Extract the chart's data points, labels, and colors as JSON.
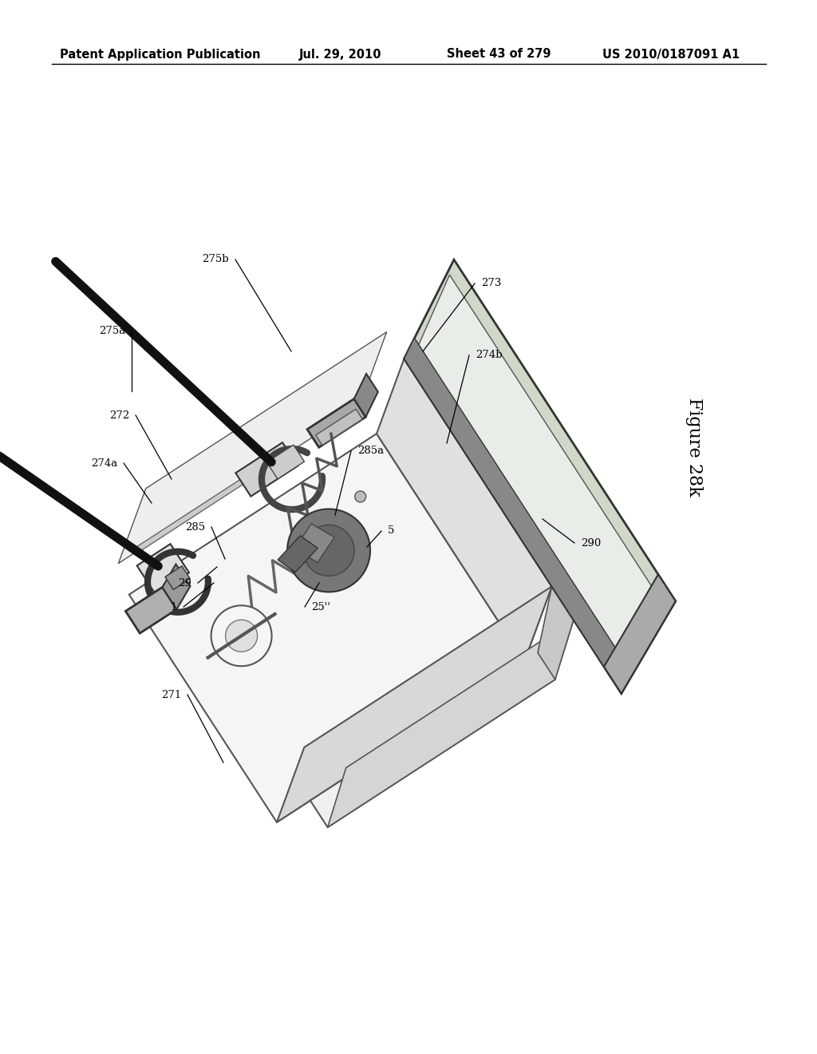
{
  "header_left": "Patent Application Publication",
  "header_mid": "Jul. 29, 2010",
  "header_sheet": "Sheet 43 of 279",
  "header_right": "US 2010/0187091 A1",
  "figure_label": "Figure 28k",
  "bg_color": "#ffffff",
  "rotation_deg": -35,
  "colors": {
    "light_gray": "#e8e8e8",
    "mid_gray": "#c8c8c8",
    "dark_gray": "#888888",
    "darker_gray": "#666666",
    "very_dark": "#333333",
    "white": "#ffffff",
    "green_gray": "#c8d4c8",
    "dark_green": "#8aaa8a",
    "black": "#111111",
    "tan": "#d4ccc0"
  }
}
